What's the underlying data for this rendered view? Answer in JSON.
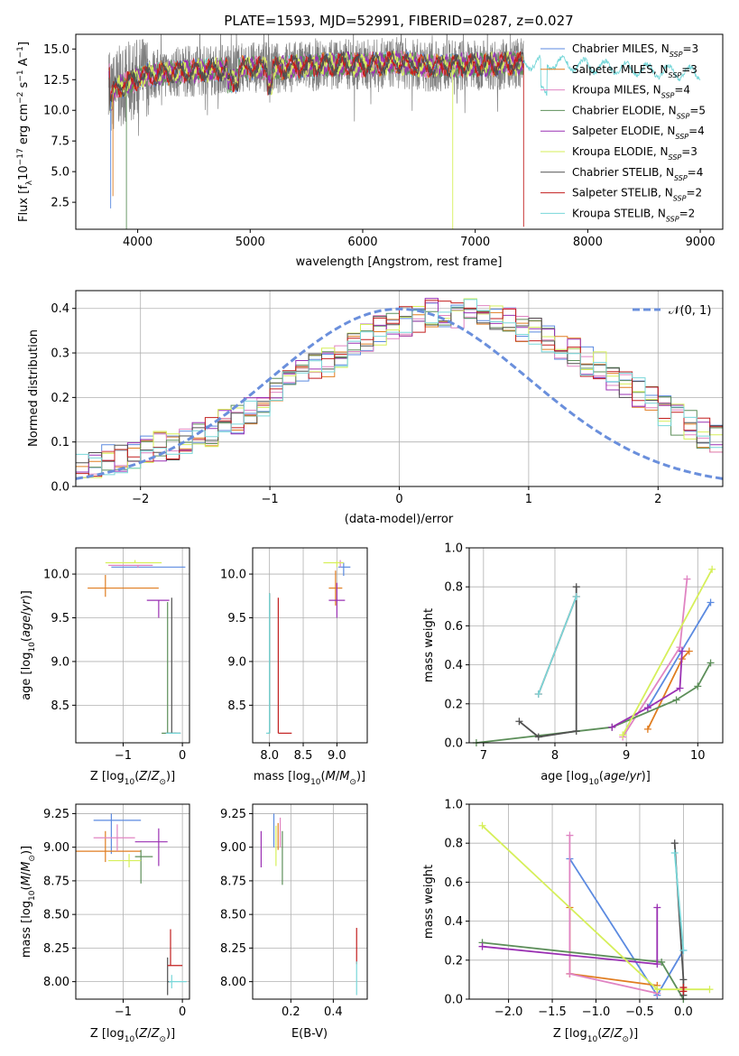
{
  "colors": [
    "#5b8ae0",
    "#e07d20",
    "#e084c2",
    "#5d8f5a",
    "#9a30b3",
    "#d6ef5a",
    "#505050",
    "#c21e1e",
    "#78d7d9"
  ],
  "spectrum": {
    "title": "PLATE=1593, MJD=52991, FIBERID=0287, z=0.027",
    "xlabel": "wavelength [Angstrom, rest frame]",
    "ylabel": "Flux [f_λ 10^-17 erg cm^-2 s^-1 A^-1]",
    "xticks": [
      "4000",
      "5000",
      "6000",
      "7000",
      "8000",
      "9000"
    ],
    "yticks": [
      "2.5",
      "5.0",
      "7.5",
      "10.0",
      "12.5",
      "15.0"
    ],
    "legend": [
      {
        "label": "Chabrier MILES, N",
        "n": "=3"
      },
      {
        "label": "Salpeter MILES, N",
        "n": "=3"
      },
      {
        "label": "Kroupa MILES, N",
        "n": "=4"
      },
      {
        "label": "Chabrier ELODIE, N",
        "n": "=5"
      },
      {
        "label": "Salpeter ELODIE, N",
        "n": "=4"
      },
      {
        "label": "Kroupa ELODIE, N",
        "n": "=3"
      },
      {
        "label": "Chabrier STELIB, N",
        "n": "=4"
      },
      {
        "label": "Salpeter STELIB, N",
        "n": "=2"
      },
      {
        "label": "Kroupa STELIB, N",
        "n": "=2"
      }
    ],
    "legend_sub": "SSP"
  },
  "residuals": {
    "xlabel": "(data-model)/error",
    "ylabel": "Normed distribution",
    "xticks": [
      "−2",
      "−1",
      "0",
      "1",
      "2"
    ],
    "yticks": [
      "0.0",
      "0.1",
      "0.2",
      "0.3",
      "0.4"
    ],
    "legend": "𝒩(0, 1)"
  },
  "p3": {
    "xlabel": "Z [log10(Z/Z⊙)]",
    "ylabel": "age  [log10(age/yr)]",
    "xticks": [
      "−1",
      "0"
    ],
    "yticks": [
      "8.5",
      "9.0",
      "9.5",
      "10.0"
    ]
  },
  "p4": {
    "xlabel": "mass [log10(M/M⊙)]",
    "xticks": [
      "8.0",
      "8.5",
      "9.0"
    ],
    "yticks": [
      "8.5",
      "9.0",
      "9.5",
      "10.0"
    ]
  },
  "p5": {
    "xlabel": "age  [log10(age/yr)]",
    "ylabel": "mass weight",
    "xticks": [
      "7",
      "8",
      "9",
      "10"
    ],
    "yticks": [
      "0.0",
      "0.2",
      "0.4",
      "0.6",
      "0.8",
      "1.0"
    ]
  },
  "p6": {
    "xlabel": "Z [log10(Z/Z⊙)]",
    "ylabel": "mass [log10(M/M⊙)]",
    "xticks": [
      "−1",
      "0"
    ],
    "yticks": [
      "8.00",
      "8.25",
      "8.50",
      "8.75",
      "9.00",
      "9.25"
    ]
  },
  "p7": {
    "xlabel": "E(B-V)",
    "xticks": [
      "0.2",
      "0.4"
    ],
    "yticks": [
      "8.00",
      "8.25",
      "8.50",
      "8.75",
      "9.00",
      "9.25"
    ]
  },
  "p8": {
    "xlabel": "Z [log10(Z/Z⊙)]",
    "ylabel": "mass weight",
    "xticks": [
      "−2.0",
      "−1.5",
      "−1.0",
      "−0.5",
      "0.0"
    ],
    "yticks": [
      "0.0",
      "0.2",
      "0.4",
      "0.6",
      "0.8",
      "1.0"
    ]
  },
  "chart_data": [
    {
      "type": "line",
      "title": "PLATE=1593, MJD=52991, FIBERID=0287, z=0.027",
      "xlim": [
        3450,
        9200
      ],
      "ylim": [
        0.3,
        16.2
      ],
      "series_names": [
        "Chabrier MILES, NSSP=3",
        "Salpeter MILES, NSSP=3",
        "Kroupa MILES, NSSP=4",
        "Chabrier ELODIE, NSSP=5",
        "Salpeter ELODIE, NSSP=4",
        "Kroupa ELODIE, NSSP=3",
        "Chabrier STELIB, NSSP=4",
        "Salpeter STELIB, NSSP=2",
        "Kroupa STELIB, NSSP=2"
      ],
      "spectrum_x": [
        3750,
        3800,
        3900,
        4000,
        4100,
        4300,
        4500,
        4800,
        5000,
        5200,
        5500,
        5800,
        6000,
        6300,
        6600,
        7000,
        7300,
        7600,
        7900,
        8200,
        8500,
        8800,
        9000
      ],
      "spectrum_y": [
        10.5,
        11.8,
        12.2,
        12.6,
        12.9,
        13.1,
        13.2,
        13.4,
        13.5,
        13.4,
        13.6,
        13.8,
        13.7,
        13.9,
        13.6,
        13.7,
        13.8,
        13.9,
        13.7,
        13.5,
        13.3,
        13.1,
        13.0
      ]
    },
    {
      "type": "bar",
      "xlim": [
        -2.5,
        2.5
      ],
      "ylim": [
        0,
        0.44
      ],
      "bin_width": 0.1,
      "histogram_bins": [
        0.05,
        0.05,
        0.06,
        0.06,
        0.07,
        0.08,
        0.09,
        0.09,
        0.1,
        0.11,
        0.12,
        0.14,
        0.15,
        0.17,
        0.19,
        0.21,
        0.23,
        0.25,
        0.27,
        0.28,
        0.3,
        0.32,
        0.33,
        0.35,
        0.36,
        0.37,
        0.38,
        0.39,
        0.39,
        0.39,
        0.39,
        0.39,
        0.38,
        0.37,
        0.36,
        0.35,
        0.33,
        0.32,
        0.3,
        0.28,
        0.27,
        0.25,
        0.23,
        0.21,
        0.19,
        0.17,
        0.15,
        0.14,
        0.12,
        0.11,
        0.1
      ],
      "normal_curve": "N(0,1)"
    },
    {
      "type": "scatter",
      "xlim": [
        -1.8,
        0.12
      ],
      "ylim": [
        8.07,
        10.3
      ],
      "points": [
        [
          -0.25,
          10.08
        ],
        [
          -1.3,
          9.84
        ],
        [
          -0.75,
          10.1
        ],
        [
          -0.25,
          8.18
        ],
        [
          -0.4,
          9.7
        ],
        [
          -0.8,
          10.13
        ],
        [
          -0.18,
          8.18
        ],
        [
          -1.3,
          9.84
        ],
        [
          -0.18,
          8.18
        ]
      ]
    },
    {
      "type": "scatter",
      "xlim": [
        7.75,
        9.45
      ],
      "ylim": [
        8.07,
        10.3
      ],
      "points": [
        [
          9.1,
          10.08
        ],
        [
          8.98,
          9.84
        ],
        [
          9.05,
          10.13
        ],
        [
          8.0,
          8.18
        ],
        [
          9.0,
          9.7
        ],
        [
          9.0,
          10.13
        ],
        [
          8.0,
          8.18
        ],
        [
          8.13,
          8.18
        ],
        [
          8.0,
          8.18
        ]
      ]
    },
    {
      "type": "line",
      "xlim": [
        6.8,
        10.35
      ],
      "ylim": [
        0,
        1
      ],
      "series": [
        {
          "x": [
            9.3,
            10.18
          ],
          "y": [
            0.18,
            0.72
          ]
        },
        {
          "x": [
            9.3,
            9.78,
            9.88
          ],
          "y": [
            0.07,
            0.43,
            0.47
          ]
        },
        {
          "x": [
            8.95,
            9.75,
            9.85
          ],
          "y": [
            0.03,
            0.49,
            0.84
          ]
        },
        {
          "x": [
            6.9,
            8.8,
            9.7,
            10.0,
            10.18
          ],
          "y": [
            0.0,
            0.08,
            0.22,
            0.29,
            0.41
          ]
        },
        {
          "x": [
            8.8,
            9.3,
            9.75,
            9.78
          ],
          "y": [
            0.08,
            0.18,
            0.28,
            0.47
          ]
        },
        {
          "x": [
            8.95,
            10.2
          ],
          "y": [
            0.04,
            0.89
          ]
        },
        {
          "x": [
            7.5,
            7.77,
            8.3,
            8.3
          ],
          "y": [
            0.11,
            0.03,
            0.06,
            0.8
          ]
        },
        {
          "x": [
            7.77,
            8.3
          ],
          "y": [
            0.25,
            0.75
          ]
        },
        {
          "x": [
            7.77,
            8.3
          ],
          "y": [
            0.25,
            0.75
          ]
        }
      ]
    },
    {
      "type": "scatter",
      "xlim": [
        -1.8,
        0.12
      ],
      "ylim": [
        7.87,
        9.32
      ],
      "points": [
        [
          -1.2,
          9.2
        ],
        [
          -1.3,
          8.97
        ],
        [
          -1.1,
          9.07
        ],
        [
          -0.7,
          8.93
        ],
        [
          -0.4,
          9.04
        ],
        [
          -0.9,
          8.9
        ],
        [
          -0.25,
          8.0
        ],
        [
          -0.2,
          8.12
        ],
        [
          -0.18,
          8.0
        ]
      ]
    },
    {
      "type": "scatter",
      "xlim": [
        0.02,
        0.56
      ],
      "ylim": [
        7.87,
        9.32
      ],
      "points": [
        [
          0.12,
          9.2
        ],
        [
          0.14,
          9.08
        ],
        [
          0.15,
          9.1
        ],
        [
          0.16,
          8.97
        ],
        [
          0.06,
          9.02
        ],
        [
          0.13,
          8.96
        ],
        [
          0.51,
          8.0
        ],
        [
          0.51,
          8.13
        ],
        [
          0.51,
          8.0
        ]
      ]
    },
    {
      "type": "line",
      "xlim": [
        -2.45,
        0.45
      ],
      "ylim": [
        0,
        1
      ],
      "series": [
        {
          "x": [
            -1.3,
            -0.3,
            0.0
          ],
          "y": [
            0.72,
            0.02,
            0.25
          ]
        },
        {
          "x": [
            -1.3,
            -1.3,
            -0.3
          ],
          "y": [
            0.47,
            0.13,
            0.07
          ]
        },
        {
          "x": [
            -1.3,
            -1.3,
            -0.3
          ],
          "y": [
            0.84,
            0.13,
            0.03
          ]
        },
        {
          "x": [
            -2.3,
            -0.25,
            0.0
          ],
          "y": [
            0.29,
            0.19,
            0.0
          ]
        },
        {
          "x": [
            -2.3,
            -0.3,
            -0.3
          ],
          "y": [
            0.27,
            0.18,
            0.47
          ]
        },
        {
          "x": [
            -2.3,
            -0.3,
            0.3
          ],
          "y": [
            0.89,
            0.05,
            0.05
          ]
        },
        {
          "x": [
            -0.1,
            0.0,
            0.0
          ],
          "y": [
            0.8,
            0.1,
            0.02
          ]
        },
        {
          "x": [
            0.0,
            0.0
          ],
          "y": [
            0.06,
            0.04
          ]
        },
        {
          "x": [
            -0.1,
            0.0
          ],
          "y": [
            0.75,
            0.25
          ]
        }
      ]
    }
  ]
}
